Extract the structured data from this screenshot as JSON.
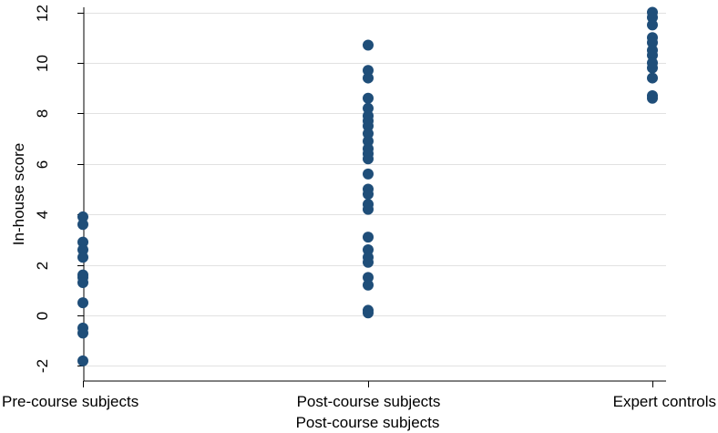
{
  "chart_data": {
    "type": "scatter",
    "xlabel": "Post-course subjects",
    "ylabel": "In-house score",
    "ylim": [
      -2.6,
      12.2
    ],
    "yticks": [
      -2,
      0,
      2,
      4,
      6,
      8,
      10,
      12
    ],
    "grid": true,
    "marker_color": "#1f4e79",
    "categories": [
      "Pre-course subjects",
      "Post-course subjects",
      "Expert controls"
    ],
    "series": [
      {
        "category": "Pre-course subjects",
        "values": [
          3.9,
          3.6,
          2.9,
          2.6,
          2.3,
          1.6,
          1.5,
          1.3,
          0.5,
          -0.5,
          -0.7,
          -1.8
        ]
      },
      {
        "category": "Post-course subjects",
        "values": [
          10.7,
          9.7,
          9.4,
          8.6,
          8.2,
          7.9,
          7.7,
          7.5,
          7.2,
          6.9,
          6.6,
          6.4,
          6.2,
          5.6,
          5.0,
          4.8,
          4.4,
          4.2,
          3.1,
          2.6,
          2.3,
          2.1,
          1.5,
          1.2,
          0.2,
          0.1
        ]
      },
      {
        "category": "Expert controls",
        "values": [
          12.0,
          11.8,
          11.5,
          11.0,
          10.8,
          10.5,
          10.3,
          10.0,
          9.8,
          9.4,
          8.7,
          8.6
        ]
      }
    ]
  }
}
